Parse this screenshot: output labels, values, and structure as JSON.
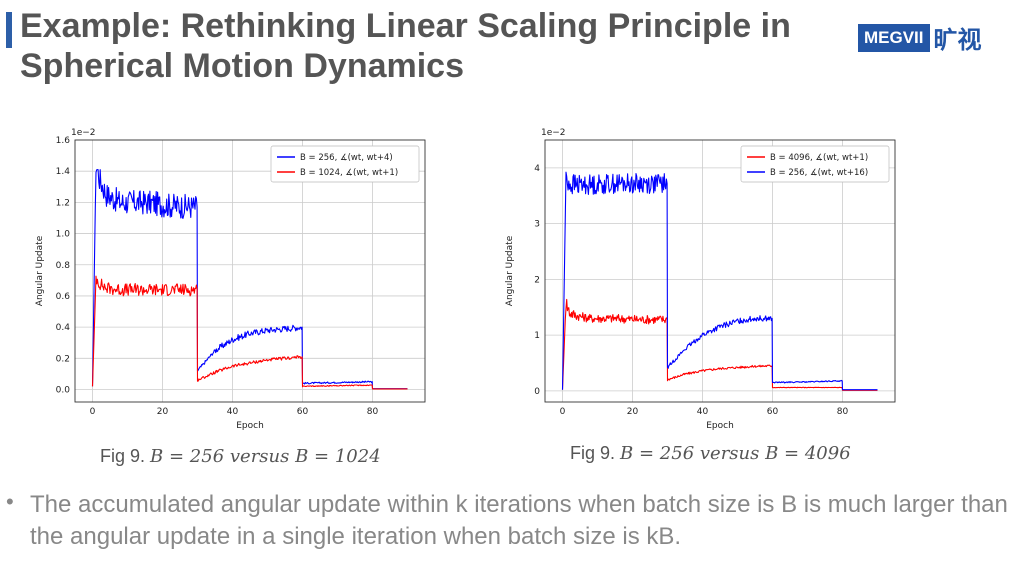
{
  "slide": {
    "title": "Example: Rethinking Linear Scaling Principle in Spherical Motion Dynamics",
    "logo_text": "MEGVII",
    "logo_cn": "旷视",
    "bullet": "The accumulated angular update within k iterations when batch size is B is much larger than the angular update in a single iteration when batch size is kB."
  },
  "captions": [
    {
      "prefix": "Fig 9.",
      "text": "B = 256 versus B = 1024"
    },
    {
      "prefix": "Fig 9.",
      "text": "B = 256 versus B = 4096"
    }
  ],
  "colors": {
    "blue": "#0000ff",
    "red": "#ff0000",
    "grid": "#cccccc",
    "accent": "#2d5fa8"
  },
  "chart_data": [
    {
      "type": "line",
      "scale_label": "1e−2",
      "xlabel": "Epoch",
      "ylabel": "Angular Update",
      "xlim": [
        -5,
        95
      ],
      "ylim": [
        -0.08,
        1.6
      ],
      "xticks": [
        0,
        20,
        40,
        60,
        80
      ],
      "yticks": [
        0.0,
        0.2,
        0.4,
        0.6,
        0.8,
        1.0,
        1.2,
        1.4,
        1.6
      ],
      "ytick_labels": [
        "0.0",
        "0.2",
        "0.4",
        "0.6",
        "0.8",
        "1.0",
        "1.2",
        "1.4",
        "1.6"
      ],
      "legend": "top-right",
      "series": [
        {
          "name": "B = 256, ∡(wt, wt+4)",
          "color": "blue",
          "x": [
            0,
            1,
            2,
            4,
            8,
            15,
            22,
            29.9,
            30,
            35,
            40,
            45,
            50,
            55,
            59.9,
            60,
            70,
            79.9,
            80,
            90
          ],
          "y": [
            0.02,
            1.45,
            1.35,
            1.25,
            1.2,
            1.2,
            1.18,
            1.17,
            0.12,
            0.25,
            0.32,
            0.36,
            0.38,
            0.39,
            0.4,
            0.04,
            0.045,
            0.05,
            0.005,
            0.005
          ],
          "noise": [
            0,
            0.08,
            0.08,
            0.08,
            0.08,
            0.08,
            0.08,
            0.08,
            0.01,
            0.02,
            0.02,
            0.02,
            0.02,
            0.02,
            0.02,
            0.005,
            0.005,
            0.005,
            0,
            0
          ]
        },
        {
          "name": "B = 1024, ∡(wt, wt+1)",
          "color": "red",
          "x": [
            0,
            1,
            2,
            4,
            8,
            15,
            22,
            29.9,
            30,
            35,
            40,
            45,
            50,
            55,
            59.9,
            60,
            70,
            79.9,
            80,
            90
          ],
          "y": [
            0.02,
            0.72,
            0.68,
            0.65,
            0.64,
            0.64,
            0.64,
            0.64,
            0.06,
            0.11,
            0.15,
            0.17,
            0.19,
            0.2,
            0.21,
            0.02,
            0.025,
            0.028,
            0.004,
            0.004
          ],
          "noise": [
            0,
            0.04,
            0.04,
            0.04,
            0.04,
            0.04,
            0.04,
            0.04,
            0.008,
            0.01,
            0.01,
            0.01,
            0.01,
            0.01,
            0.01,
            0.003,
            0.003,
            0.003,
            0,
            0
          ]
        }
      ]
    },
    {
      "type": "line",
      "scale_label": "1e−2",
      "xlabel": "Epoch",
      "ylabel": "Angular Update",
      "xlim": [
        -5,
        95
      ],
      "ylim": [
        -0.2,
        4.5
      ],
      "xticks": [
        0,
        20,
        40,
        60,
        80
      ],
      "yticks": [
        0,
        1,
        2,
        3,
        4
      ],
      "ytick_labels": [
        "0",
        "1",
        "2",
        "3",
        "4"
      ],
      "legend": "top-right",
      "series": [
        {
          "name": "B = 4096, ∡(wt, wt+1)",
          "color": "red",
          "x": [
            0,
            1,
            2,
            4,
            8,
            15,
            22,
            29.9,
            30,
            35,
            40,
            45,
            50,
            55,
            59.9,
            60,
            70,
            79.9,
            80,
            90
          ],
          "y": [
            0.02,
            1.6,
            1.4,
            1.35,
            1.3,
            1.3,
            1.28,
            1.28,
            0.2,
            0.3,
            0.36,
            0.4,
            0.42,
            0.44,
            0.45,
            0.06,
            0.06,
            0.06,
            0.01,
            0.01
          ],
          "noise": [
            0,
            0.15,
            0.1,
            0.08,
            0.08,
            0.08,
            0.08,
            0.08,
            0.02,
            0.02,
            0.02,
            0.02,
            0.02,
            0.02,
            0.02,
            0.005,
            0.005,
            0.005,
            0,
            0
          ]
        },
        {
          "name": "B = 256, ∡(wt, wt+16)",
          "color": "blue",
          "x": [
            0,
            1,
            2,
            4,
            8,
            15,
            22,
            29.9,
            30,
            35,
            40,
            45,
            50,
            55,
            59.9,
            60,
            70,
            79.9,
            80,
            90
          ],
          "y": [
            0.02,
            3.9,
            3.7,
            3.7,
            3.7,
            3.72,
            3.72,
            3.72,
            0.42,
            0.75,
            1.0,
            1.15,
            1.25,
            1.3,
            1.3,
            0.15,
            0.16,
            0.18,
            0.02,
            0.02
          ],
          "noise": [
            0,
            0.25,
            0.2,
            0.18,
            0.18,
            0.18,
            0.18,
            0.18,
            0.03,
            0.04,
            0.05,
            0.05,
            0.05,
            0.05,
            0.05,
            0.01,
            0.01,
            0.01,
            0,
            0
          ]
        }
      ]
    }
  ]
}
